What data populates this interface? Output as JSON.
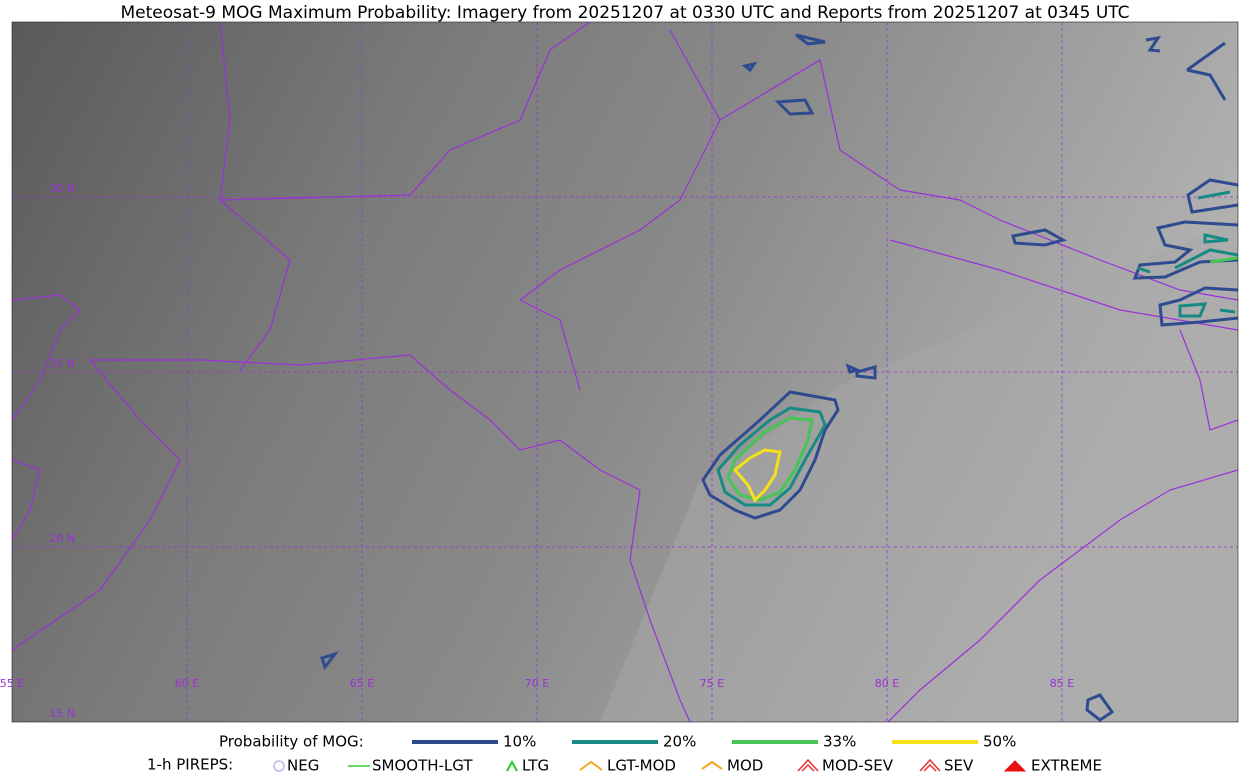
{
  "title": "Meteosat-9 MOG Maximum Probability: Imagery from 20251207 at 0330 UTC and Reports from 20251207 at 0345 UTC",
  "map": {
    "lat_labels": [
      "30 N",
      "25 N",
      "20 N",
      "15 N"
    ],
    "lon_labels": [
      "55 E",
      "60 E",
      "65 E",
      "70 E",
      "75 E",
      "80 E",
      "85 E"
    ]
  },
  "legend": {
    "probability_title": "Probability of MOG:",
    "probability": [
      {
        "name": "10%",
        "color": "#2f4b8f"
      },
      {
        "name": "20%",
        "color": "#178a84"
      },
      {
        "name": "33%",
        "color": "#45c556"
      },
      {
        "name": "50%",
        "color": "#f5e11a"
      }
    ],
    "pireps_title": "1-h PIREPS:",
    "pireps": [
      {
        "name": "NEG",
        "color": "#b8b8f0"
      },
      {
        "name": "SMOOTH-LGT",
        "color": "#33cc33"
      },
      {
        "name": "LTG",
        "color": "#22cc22"
      },
      {
        "name": "LGT-MOD",
        "color": "#f5a623"
      },
      {
        "name": "MOD",
        "color": "#f5a623"
      },
      {
        "name": "MOD-SEV",
        "color": "#e83030"
      },
      {
        "name": "SEV",
        "color": "#e83030"
      },
      {
        "name": "EXTREME",
        "color": "#e81010"
      }
    ]
  }
}
